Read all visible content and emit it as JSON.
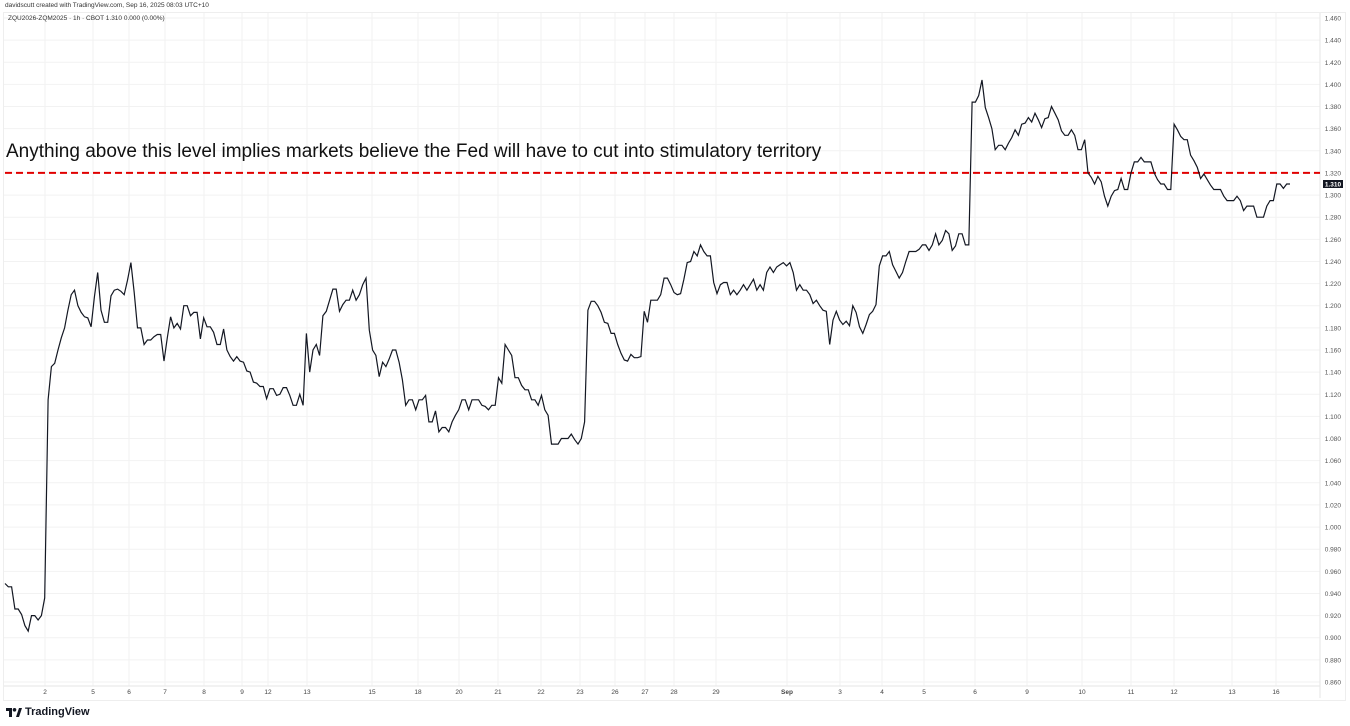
{
  "header": {
    "credit": "davidscutt created with TradingView.com, Sep 16, 2025 08:03 UTC+10",
    "legend": "ZQU2026-ZQM2025 · 1h · CBOT  1.310  0.000 (0.00%)"
  },
  "annotation": "Anything above this level implies markets believe the Fed will have to cut into stimulatory territory",
  "logo": "TradingView",
  "colors": {
    "line": "#131722",
    "reference_line": "#e00000",
    "price_label_bg": "#131722"
  },
  "chart_data": {
    "type": "line",
    "symbol": "ZQU2026-ZQM2025",
    "interval": "1h",
    "last_price": "1.310",
    "ylim": [
      0.86,
      1.46
    ],
    "y_ticks": [
      "1.460",
      "1.440",
      "1.420",
      "1.400",
      "1.380",
      "1.360",
      "1.340",
      "1.320",
      "1.300",
      "1.280",
      "1.260",
      "1.240",
      "1.220",
      "1.200",
      "1.180",
      "1.160",
      "1.140",
      "1.120",
      "1.100",
      "1.080",
      "1.060",
      "1.040",
      "1.020",
      "1.000",
      "0.980",
      "0.960",
      "0.940",
      "0.920",
      "0.900",
      "0.880",
      "0.860"
    ],
    "x_ticks": [
      "2",
      "5",
      "6",
      "7",
      "8",
      "9",
      "12",
      "13",
      "15",
      "18",
      "20",
      "21",
      "22",
      "23",
      "26",
      "27",
      "28",
      "29",
      "Sep",
      "3",
      "4",
      "5",
      "6",
      "9",
      "10",
      "11",
      "12",
      "13",
      "16"
    ],
    "reference_line": {
      "value": 1.32,
      "style": "dashed"
    },
    "grid": true,
    "values": [
      0.949,
      0.946,
      0.946,
      0.926,
      0.926,
      0.921,
      0.911,
      0.906,
      0.92,
      0.92,
      0.916,
      0.92,
      0.936,
      1.115,
      1.145,
      1.148,
      1.16,
      1.171,
      1.18,
      1.196,
      1.21,
      1.214,
      1.2,
      1.194,
      1.19,
      1.189,
      1.181,
      1.208,
      1.23,
      1.196,
      1.185,
      1.185,
      1.209,
      1.214,
      1.215,
      1.213,
      1.21,
      1.223,
      1.239,
      1.212,
      1.18,
      1.18,
      1.165,
      1.169,
      1.169,
      1.172,
      1.174,
      1.174,
      1.15,
      1.171,
      1.19,
      1.18,
      1.184,
      1.179,
      1.2,
      1.2,
      1.191,
      1.194,
      1.194,
      1.17,
      1.189,
      1.181,
      1.181,
      1.176,
      1.165,
      1.165,
      1.179,
      1.16,
      1.154,
      1.15,
      1.154,
      1.15,
      1.149,
      1.141,
      1.14,
      1.131,
      1.13,
      1.127,
      1.127,
      1.116,
      1.125,
      1.125,
      1.119,
      1.12,
      1.126,
      1.126,
      1.119,
      1.11,
      1.11,
      1.12,
      1.11,
      1.175,
      1.14,
      1.16,
      1.165,
      1.155,
      1.191,
      1.195,
      1.205,
      1.215,
      1.215,
      1.195,
      1.201,
      1.205,
      1.205,
      1.214,
      1.205,
      1.21,
      1.219,
      1.225,
      1.178,
      1.16,
      1.155,
      1.136,
      1.149,
      1.145,
      1.152,
      1.16,
      1.16,
      1.149,
      1.133,
      1.11,
      1.115,
      1.115,
      1.106,
      1.115,
      1.115,
      1.119,
      1.095,
      1.095,
      1.105,
      1.086,
      1.09,
      1.09,
      1.086,
      1.095,
      1.101,
      1.106,
      1.115,
      1.115,
      1.106,
      1.115,
      1.115,
      1.115,
      1.11,
      1.109,
      1.106,
      1.11,
      1.11,
      1.135,
      1.13,
      1.165,
      1.16,
      1.155,
      1.135,
      1.135,
      1.128,
      1.124,
      1.124,
      1.115,
      1.115,
      1.11,
      1.119,
      1.106,
      1.101,
      1.075,
      1.075,
      1.075,
      1.08,
      1.08,
      1.08,
      1.084,
      1.079,
      1.075,
      1.08,
      1.095,
      1.196,
      1.204,
      1.204,
      1.2,
      1.194,
      1.185,
      1.184,
      1.175,
      1.175,
      1.165,
      1.157,
      1.151,
      1.15,
      1.156,
      1.153,
      1.153,
      1.154,
      1.195,
      1.185,
      1.205,
      1.205,
      1.205,
      1.21,
      1.225,
      1.225,
      1.219,
      1.212,
      1.21,
      1.211,
      1.224,
      1.239,
      1.24,
      1.249,
      1.245,
      1.255,
      1.249,
      1.245,
      1.245,
      1.221,
      1.211,
      1.219,
      1.221,
      1.221,
      1.21,
      1.214,
      1.21,
      1.214,
      1.219,
      1.214,
      1.219,
      1.224,
      1.214,
      1.219,
      1.214,
      1.23,
      1.235,
      1.23,
      1.235,
      1.237,
      1.239,
      1.236,
      1.239,
      1.23,
      1.214,
      1.219,
      1.214,
      1.214,
      1.21,
      1.202,
      1.205,
      1.2,
      1.196,
      1.195,
      1.165,
      1.187,
      1.195,
      1.187,
      1.183,
      1.186,
      1.182,
      1.2,
      1.194,
      1.181,
      1.175,
      1.183,
      1.192,
      1.195,
      1.201,
      1.236,
      1.245,
      1.245,
      1.249,
      1.237,
      1.231,
      1.225,
      1.23,
      1.24,
      1.249,
      1.249,
      1.249,
      1.251,
      1.255,
      1.255,
      1.25,
      1.255,
      1.265,
      1.255,
      1.259,
      1.268,
      1.265,
      1.25,
      1.254,
      1.265,
      1.265,
      1.255,
      1.255,
      1.384,
      1.384,
      1.39,
      1.404,
      1.379,
      1.37,
      1.36,
      1.341,
      1.345,
      1.345,
      1.341,
      1.347,
      1.352,
      1.359,
      1.354,
      1.364,
      1.365,
      1.37,
      1.366,
      1.374,
      1.368,
      1.361,
      1.369,
      1.37,
      1.38,
      1.374,
      1.368,
      1.358,
      1.354,
      1.354,
      1.359,
      1.354,
      1.341,
      1.341,
      1.35,
      1.32,
      1.316,
      1.31,
      1.317,
      1.312,
      1.299,
      1.29,
      1.299,
      1.304,
      1.305,
      1.315,
      1.305,
      1.305,
      1.32,
      1.33,
      1.33,
      1.334,
      1.33,
      1.33,
      1.33,
      1.32,
      1.314,
      1.31,
      1.31,
      1.305,
      1.305,
      1.364,
      1.359,
      1.353,
      1.35,
      1.35,
      1.336,
      1.331,
      1.325,
      1.315,
      1.319,
      1.314,
      1.309,
      1.305,
      1.305,
      1.305,
      1.299,
      1.295,
      1.295,
      1.295,
      1.299,
      1.295,
      1.286,
      1.29,
      1.29,
      1.29,
      1.28,
      1.28,
      1.28,
      1.29,
      1.295,
      1.295,
      1.31,
      1.31,
      1.306,
      1.31,
      1.31
    ]
  }
}
